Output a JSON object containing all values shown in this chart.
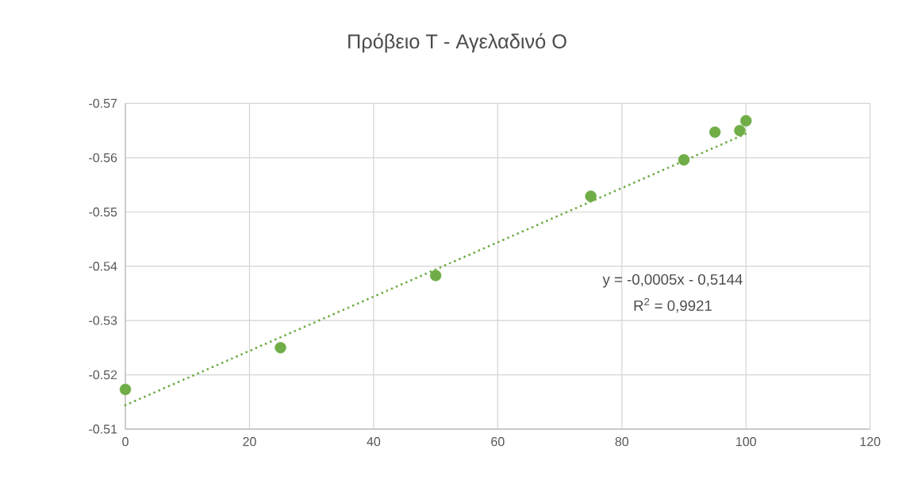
{
  "chart_data": {
    "type": "scatter",
    "title": "Πρόβειο Τ - Αγελαδινό Ο",
    "series": [
      {
        "color": "#70ad47",
        "marker": "circle",
        "x": [
          0,
          25,
          50,
          75,
          90,
          95,
          99,
          100
        ],
        "values": [
          -0.5173,
          -0.525,
          -0.5383,
          -0.5529,
          -0.5596,
          -0.5647,
          -0.565,
          -0.5668
        ]
      },
      {
        "type": "line",
        "color": "#70ad47",
        "line_style": "dotted",
        "marker": "none",
        "x": [
          0,
          100
        ],
        "values": [
          -0.5144,
          -0.5644
        ]
      }
    ],
    "annotations": [
      "y = -0,0005x - 0,5144",
      "R$^{2}$ = 0,9921"
    ],
    "xlim": [
      0,
      120
    ],
    "xticks": [
      0,
      20,
      40,
      60,
      80,
      100,
      120
    ],
    "ylim": [
      -0.51,
      -0.57
    ],
    "yticks": [
      -0.57,
      -0.56,
      -0.55,
      -0.54,
      -0.53,
      -0.52,
      -0.51
    ],
    "grid": true
  }
}
